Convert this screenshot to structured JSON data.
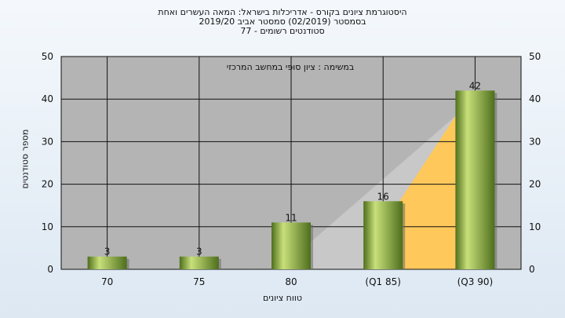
{
  "chart_data": {
    "type": "bar",
    "title_lines": [
      "היסטוגרמת ציונים בקורס - אדריכלות בישראל: המאה העשרים ואחת",
      "בסמסטר  (02/2019)  סמסטר אביב 2019/20",
      "סטודנטים רשומים - 77"
    ],
    "annotation": "במשימה : ציון סופי במחשב המרכזי",
    "xlabel": "טווח ציונים",
    "ylabel": "מספר סטודנטים",
    "categories": [
      "70",
      "75",
      "80",
      "(Q1 85)",
      "(Q3 90)"
    ],
    "values": [
      3,
      3,
      11,
      16,
      42
    ],
    "ylim": [
      0,
      50
    ],
    "yticks": [
      0,
      10,
      20,
      30,
      40,
      50
    ],
    "grid": true,
    "colors": {
      "plot_bg": "#b4b4b4",
      "bar_light": "#c8e07a",
      "bar_dark": "#4e6e1c",
      "cumulative_area": "#ffc85a",
      "secondary_area": "#c8c8c8"
    }
  }
}
